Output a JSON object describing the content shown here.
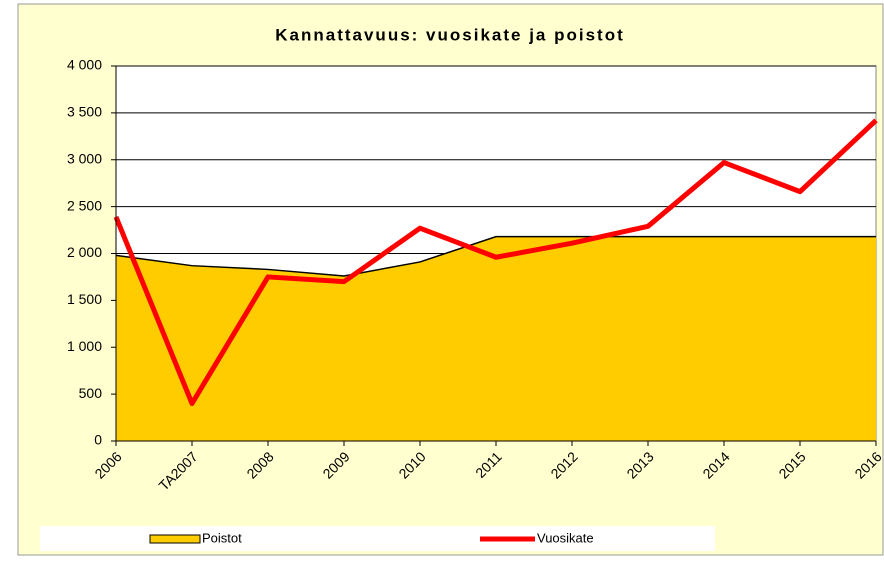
{
  "chart_data": {
    "type": "area_line",
    "title": "Kannattavuus: vuosikate ja poistot",
    "categories": [
      "2006",
      "TA2007",
      "2008",
      "2009",
      "2010",
      "2011",
      "2012",
      "2013",
      "2014",
      "2015",
      "2016"
    ],
    "series": [
      {
        "name": "Poistot",
        "type": "area",
        "color": "#ffcc00",
        "values": [
          1980,
          1870,
          1830,
          1760,
          1910,
          2180,
          2180,
          2180,
          2180,
          2180,
          2180
        ]
      },
      {
        "name": "Vuosikate",
        "type": "line",
        "color": "#ff0000",
        "values": [
          2390,
          400,
          1750,
          1700,
          2270,
          1960,
          2110,
          2290,
          2970,
          2660,
          3420
        ]
      }
    ],
    "ylim": [
      0,
      4000
    ],
    "yticks": [
      0,
      500,
      {
        "value": 1000,
        "label": "1 000"
      },
      {
        "value": 1500,
        "label": "1 500"
      },
      {
        "value": 2000,
        "label": "2 000"
      },
      {
        "value": 2500,
        "label": "2 500"
      },
      {
        "value": 3000,
        "label": "3 000"
      },
      {
        "value": 3500,
        "label": "3 500"
      },
      {
        "value": 4000,
        "label": "4 000"
      }
    ],
    "grid": true,
    "legend": "bottom"
  }
}
